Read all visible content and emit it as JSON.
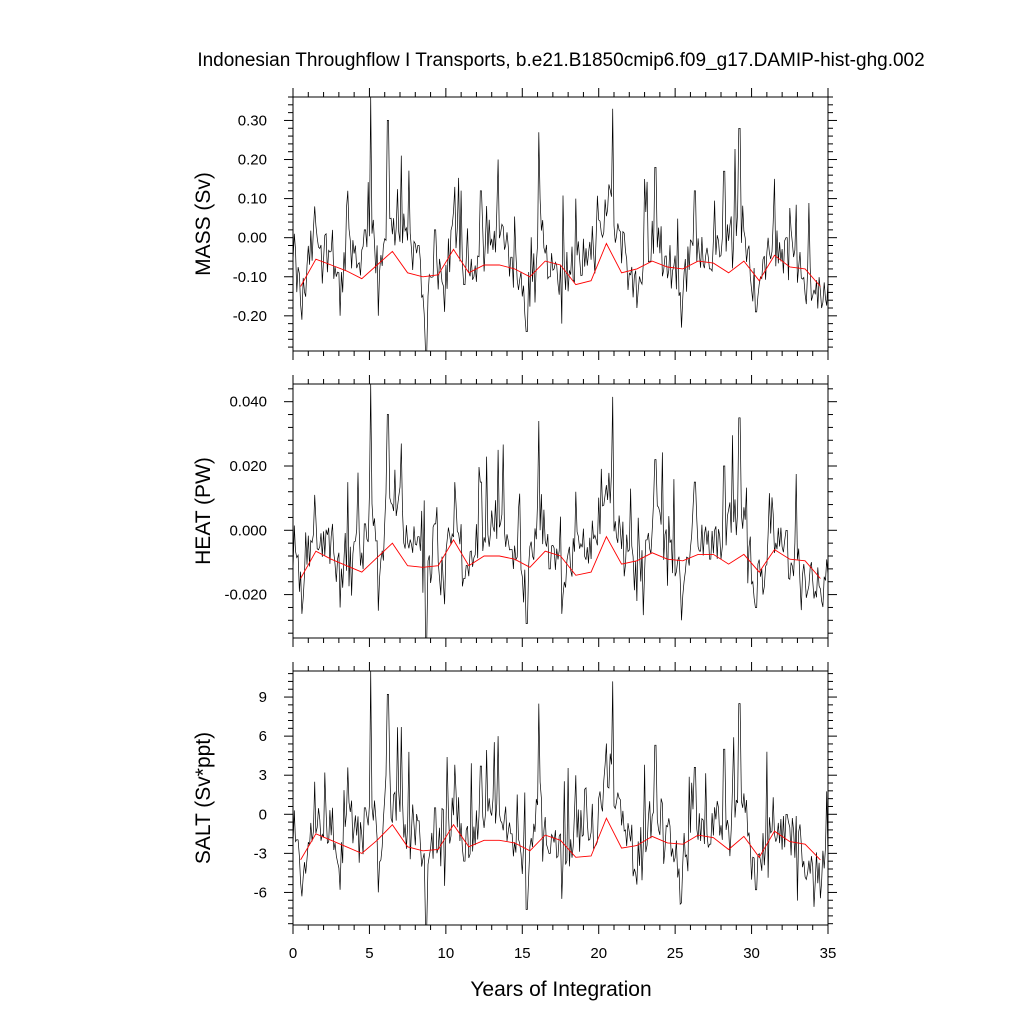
{
  "title": "Indonesian Throughflow I Transports, b.e21.B1850cmip6.f09_g17.DAMIP-hist-ghg.002",
  "chart_data": {
    "type": "line",
    "title": "Indonesian Throughflow I Transports, b.e21.B1850cmip6.f09_g17.DAMIP-hist-ghg.002",
    "xlabel": "Years of Integration",
    "xlim": [
      0,
      35
    ],
    "xticks": [
      0,
      5,
      10,
      15,
      20,
      25,
      30,
      35
    ],
    "xtick_labels": [
      "0",
      "5",
      "10",
      "15",
      "20",
      "25",
      "30",
      "35"
    ],
    "series_colors": {
      "monthly": "#000000",
      "annual_mean": "#ff0000"
    },
    "annual_x": [
      0.5,
      1.5,
      2.5,
      3.5,
      4.5,
      5.5,
      6.5,
      7.5,
      8.5,
      9.5,
      10.5,
      11.5,
      12.5,
      13.5,
      14.5,
      15.5,
      16.5,
      17.5,
      18.5,
      19.5,
      20.5,
      21.5,
      22.5,
      23.5,
      24.5,
      25.5,
      26.5,
      27.5,
      28.5,
      29.5,
      30.5,
      31.5,
      32.5,
      33.5,
      34.5
    ],
    "panels": [
      {
        "ylabel": "MASS (Sv)",
        "ylim": [
          -0.29,
          0.36
        ],
        "yticks": [
          -0.2,
          -0.1,
          0.0,
          0.1,
          0.2,
          0.3
        ],
        "ytick_labels": [
          "-0.20",
          "-0.10",
          "0.00",
          "0.10",
          "0.20",
          "0.30"
        ],
        "annual_mean": [
          -0.125,
          -0.055,
          -0.07,
          -0.085,
          -0.105,
          -0.07,
          -0.035,
          -0.09,
          -0.1,
          -0.095,
          -0.03,
          -0.09,
          -0.07,
          -0.07,
          -0.08,
          -0.1,
          -0.06,
          -0.07,
          -0.12,
          -0.11,
          -0.015,
          -0.09,
          -0.08,
          -0.06,
          -0.075,
          -0.08,
          -0.06,
          -0.065,
          -0.09,
          -0.06,
          -0.11,
          -0.045,
          -0.075,
          -0.08,
          -0.125
        ],
        "peaks": [
          [
            0.1,
            0.01
          ],
          [
            0.6,
            -0.21
          ],
          [
            1.4,
            0.08
          ],
          [
            2.6,
            0.02
          ],
          [
            3.1,
            -0.2
          ],
          [
            3.6,
            0.12
          ],
          [
            4.7,
            0.02
          ],
          [
            5.1,
            0.36
          ],
          [
            5.6,
            -0.2
          ],
          [
            6.2,
            0.3
          ],
          [
            6.6,
            0.05
          ],
          [
            7.1,
            0.21
          ],
          [
            8.2,
            -0.02
          ],
          [
            8.7,
            -0.29
          ],
          [
            9.3,
            0.02
          ],
          [
            9.9,
            -0.19
          ],
          [
            10.6,
            0.13
          ],
          [
            11.2,
            -0.12
          ],
          [
            12.3,
            0.12
          ],
          [
            13.4,
            0.2
          ],
          [
            14.3,
            -0.05
          ],
          [
            15.3,
            -0.24
          ],
          [
            16.1,
            0.27
          ],
          [
            16.8,
            -0.1
          ],
          [
            17.6,
            -0.22
          ],
          [
            18.5,
            0.1
          ],
          [
            19.6,
            0.03
          ],
          [
            20.9,
            0.33
          ],
          [
            22.5,
            -0.18
          ],
          [
            23.7,
            0.18
          ],
          [
            25.4,
            -0.23
          ],
          [
            26.3,
            0.12
          ],
          [
            27.3,
            -0.08
          ],
          [
            28.2,
            0.17
          ],
          [
            29.2,
            0.28
          ],
          [
            30.3,
            -0.19
          ],
          [
            31.4,
            0.04
          ],
          [
            32.3,
            0.0
          ],
          [
            33.6,
            -0.17
          ],
          [
            34.6,
            -0.18
          ],
          [
            35.0,
            -0.11
          ]
        ]
      },
      {
        "ylabel": "HEAT (PW)",
        "ylim": [
          -0.0335,
          0.0455
        ],
        "yticks": [
          -0.02,
          0.0,
          0.02,
          0.04
        ],
        "ytick_labels": [
          "-0.020",
          "0.000",
          "0.020",
          "0.040"
        ],
        "annual_mean": [
          -0.015,
          -0.0065,
          -0.009,
          -0.011,
          -0.013,
          -0.0085,
          -0.004,
          -0.011,
          -0.0115,
          -0.011,
          -0.003,
          -0.011,
          -0.008,
          -0.008,
          -0.009,
          -0.0115,
          -0.0065,
          -0.008,
          -0.014,
          -0.013,
          -0.002,
          -0.0105,
          -0.0095,
          -0.007,
          -0.009,
          -0.0095,
          -0.0075,
          -0.0075,
          -0.0105,
          -0.0075,
          -0.013,
          -0.006,
          -0.009,
          -0.0095,
          -0.015
        ],
        "peaks": [
          [
            0.1,
            0.0015
          ],
          [
            0.6,
            -0.026
          ],
          [
            1.4,
            0.011
          ],
          [
            2.6,
            0.002
          ],
          [
            3.1,
            -0.024
          ],
          [
            3.6,
            0.015
          ],
          [
            4.7,
            0.002
          ],
          [
            5.1,
            0.0455
          ],
          [
            5.6,
            -0.025
          ],
          [
            6.2,
            0.036
          ],
          [
            6.6,
            0.006
          ],
          [
            7.1,
            0.027
          ],
          [
            8.2,
            -0.002
          ],
          [
            8.7,
            -0.0335
          ],
          [
            9.3,
            0.002
          ],
          [
            9.9,
            -0.023
          ],
          [
            10.6,
            0.015
          ],
          [
            11.2,
            -0.015
          ],
          [
            12.3,
            0.015
          ],
          [
            13.4,
            0.025
          ],
          [
            14.3,
            -0.006
          ],
          [
            15.3,
            -0.029
          ],
          [
            16.1,
            0.034
          ],
          [
            16.8,
            -0.012
          ],
          [
            17.6,
            -0.026
          ],
          [
            18.5,
            0.012
          ],
          [
            19.6,
            0.003
          ],
          [
            20.9,
            0.0415
          ],
          [
            22.5,
            -0.022
          ],
          [
            23.7,
            0.022
          ],
          [
            25.4,
            -0.028
          ],
          [
            26.3,
            0.015
          ],
          [
            27.3,
            -0.009
          ],
          [
            28.2,
            0.02
          ],
          [
            29.2,
            0.035
          ],
          [
            30.3,
            -0.024
          ],
          [
            31.4,
            0.005
          ],
          [
            32.3,
            0.0
          ],
          [
            33.6,
            -0.021
          ],
          [
            34.6,
            -0.022
          ],
          [
            35.0,
            -0.014
          ]
        ]
      },
      {
        "ylabel": "SALT (Sv*ppt)",
        "ylim": [
          -8.5,
          11.0
        ],
        "yticks": [
          -6,
          -3,
          0,
          3,
          6,
          9
        ],
        "ytick_labels": [
          "-6",
          "-3",
          "0",
          "3",
          "6",
          "9"
        ],
        "annual_mean": [
          -3.5,
          -1.5,
          -2.0,
          -2.5,
          -3.0,
          -2.0,
          -0.8,
          -2.5,
          -2.8,
          -2.7,
          -0.8,
          -2.5,
          -2.0,
          -2.0,
          -2.2,
          -2.8,
          -1.6,
          -2.0,
          -3.3,
          -3.2,
          -0.3,
          -2.6,
          -2.4,
          -1.7,
          -2.2,
          -2.3,
          -1.6,
          -1.8,
          -2.7,
          -1.7,
          -3.3,
          -1.3,
          -2.1,
          -2.3,
          -3.5
        ],
        "peaks": [
          [
            0.1,
            0.3
          ],
          [
            0.6,
            -6.3
          ],
          [
            1.4,
            2.5
          ],
          [
            2.6,
            0.5
          ],
          [
            3.1,
            -5.8
          ],
          [
            3.6,
            3.6
          ],
          [
            4.7,
            0.5
          ],
          [
            5.1,
            11.0
          ],
          [
            5.6,
            -6.0
          ],
          [
            6.2,
            9.2
          ],
          [
            6.6,
            1.5
          ],
          [
            7.1,
            6.7
          ],
          [
            8.2,
            -0.5
          ],
          [
            8.7,
            -8.5
          ],
          [
            9.3,
            0.5
          ],
          [
            9.9,
            -5.5
          ],
          [
            10.6,
            3.8
          ],
          [
            11.2,
            -3.6
          ],
          [
            12.3,
            3.7
          ],
          [
            13.4,
            6.0
          ],
          [
            14.3,
            -1.5
          ],
          [
            15.3,
            -7.3
          ],
          [
            16.1,
            8.5
          ],
          [
            16.8,
            -3.0
          ],
          [
            17.6,
            -6.5
          ],
          [
            18.5,
            3.0
          ],
          [
            19.6,
            0.8
          ],
          [
            20.9,
            10.2
          ],
          [
            22.5,
            -5.4
          ],
          [
            23.7,
            5.3
          ],
          [
            25.4,
            -6.8
          ],
          [
            26.3,
            3.6
          ],
          [
            27.3,
            -2.3
          ],
          [
            28.2,
            5.0
          ],
          [
            29.2,
            8.5
          ],
          [
            30.3,
            -5.8
          ],
          [
            31.4,
            1.3
          ],
          [
            32.3,
            0.0
          ],
          [
            33.6,
            -5.0
          ],
          [
            34.6,
            -5.2
          ],
          [
            35.0,
            -3.4
          ]
        ]
      }
    ]
  }
}
